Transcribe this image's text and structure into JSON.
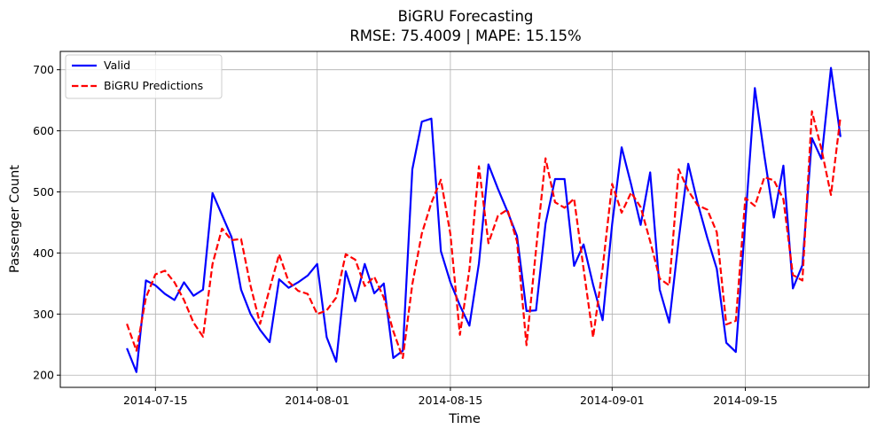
{
  "chart_data": {
    "type": "line",
    "title": "BiGRU Forecasting",
    "subtitle": "RMSE: 75.4009 | MAPE: 15.15%",
    "xlabel": "Time",
    "ylabel": "Passenger Count",
    "x_tick_labels": [
      "2014-07-15",
      "2014-08-01",
      "2014-08-15",
      "2014-09-01",
      "2014-09-15"
    ],
    "x_ticks": [
      "2014-07-15",
      "2014-08-01",
      "2014-08-15",
      "2014-09-01",
      "2014-09-15"
    ],
    "y_ticks": [
      200,
      300,
      400,
      500,
      600,
      700
    ],
    "xlim": [
      "2014-07-05",
      "2014-09-28"
    ],
    "ylim": [
      180,
      730
    ],
    "grid": true,
    "legend_position": "top-left",
    "x_start": "2014-07-12",
    "series": [
      {
        "name": "Valid",
        "color": "#0000ff",
        "style": "solid",
        "values": [
          244,
          205,
          355,
          347,
          333,
          323,
          352,
          330,
          340,
          498,
          462,
          426,
          340,
          300,
          274,
          254,
          357,
          343,
          352,
          363,
          382,
          262,
          222,
          370,
          321,
          382,
          334,
          350,
          228,
          240,
          537,
          615,
          620,
          403,
          352,
          314,
          281,
          383,
          545,
          505,
          468,
          428,
          305,
          306,
          448,
          521,
          521,
          379,
          414,
          348,
          290,
          447,
          573,
          512,
          446,
          532,
          340,
          286,
          422,
          546,
          481,
          425,
          374,
          253,
          238,
          452,
          670,
          559,
          458,
          543,
          342,
          380,
          588,
          554,
          703,
          590
        ]
      },
      {
        "name": "BiGRU Predictions",
        "color": "#ff0000",
        "style": "dashed",
        "values": [
          284,
          240,
          327,
          365,
          371,
          352,
          323,
          286,
          263,
          382,
          440,
          421,
          423,
          346,
          284,
          341,
          398,
          353,
          338,
          333,
          300,
          306,
          327,
          398,
          389,
          346,
          361,
          327,
          272,
          228,
          349,
          432,
          482,
          520,
          431,
          266,
          373,
          542,
          416,
          461,
          471,
          419,
          249,
          405,
          555,
          483,
          474,
          489,
          374,
          262,
          375,
          513,
          466,
          499,
          475,
          419,
          358,
          347,
          537,
          502,
          478,
          471,
          434,
          283,
          289,
          490,
          477,
          524,
          519,
          488,
          364,
          355,
          632,
          570,
          495,
          623
        ]
      }
    ]
  }
}
